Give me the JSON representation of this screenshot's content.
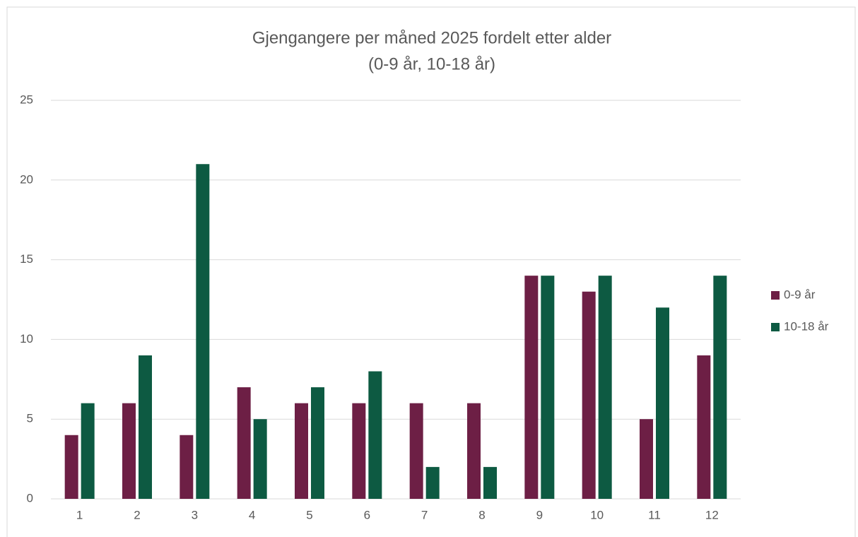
{
  "chart_data": {
    "type": "bar",
    "title": [
      "Gjengangere per måned 2025 fordelt etter alder",
      "(0-9 år, 10-18 år)"
    ],
    "categories": [
      "1",
      "2",
      "3",
      "4",
      "5",
      "6",
      "7",
      "8",
      "9",
      "10",
      "11",
      "12"
    ],
    "series": [
      {
        "name": "0-9 år",
        "color": "#6d1f45",
        "values": [
          4,
          6,
          4,
          7,
          6,
          6,
          6,
          6,
          14,
          13,
          5,
          9
        ]
      },
      {
        "name": "10-18 år",
        "color": "#0d5a42",
        "values": [
          6,
          9,
          21,
          5,
          7,
          8,
          2,
          2,
          14,
          14,
          12,
          14
        ]
      }
    ],
    "ylim": [
      0,
      25
    ],
    "yticks": [
      0,
      5,
      10,
      15,
      20,
      25
    ],
    "grid": true,
    "legend": "right"
  }
}
